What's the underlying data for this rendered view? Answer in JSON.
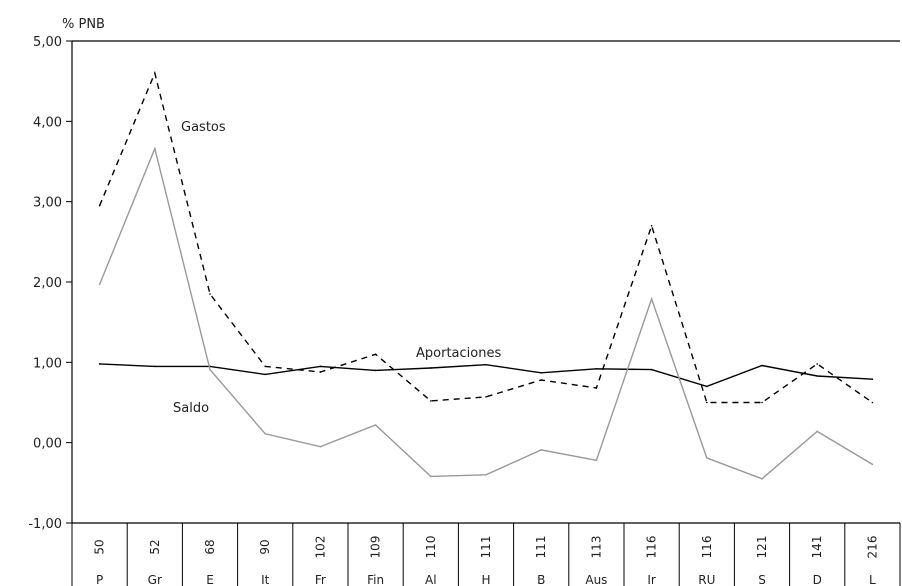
{
  "chart_data": {
    "type": "line",
    "ylabel": "% PNB",
    "ylim": [
      -1,
      5
    ],
    "yticks": [
      "5,00",
      "4,00",
      "3,00",
      "2,00",
      "1,00",
      "0,00",
      "-1,00"
    ],
    "categories": [
      "P",
      "Gr",
      "E",
      "It",
      "Fr",
      "Fin",
      "Al",
      "H",
      "B",
      "Aus",
      "Ir",
      "RU",
      "S",
      "D",
      "L"
    ],
    "category_values": [
      "50",
      "52",
      "68",
      "90",
      "102",
      "109",
      "110",
      "111",
      "111",
      "113",
      "116",
      "116",
      "121",
      "141",
      "216"
    ],
    "series": [
      {
        "name": "Gastos",
        "style": "dashed",
        "color": "#000000",
        "values": [
          2.95,
          4.6,
          1.85,
          0.95,
          0.88,
          1.1,
          0.52,
          0.57,
          0.78,
          0.68,
          2.7,
          0.5,
          0.5,
          0.98,
          0.5
        ]
      },
      {
        "name": "Aportaciones",
        "style": "solid",
        "color": "#000000",
        "values": [
          0.98,
          0.95,
          0.95,
          0.85,
          0.95,
          0.9,
          0.93,
          0.97,
          0.87,
          0.92,
          0.91,
          0.7,
          0.96,
          0.83,
          0.79
        ]
      },
      {
        "name": "Saldo",
        "style": "solid",
        "color": "#999999",
        "values": [
          1.97,
          3.66,
          0.91,
          0.11,
          -0.05,
          0.22,
          -0.42,
          -0.4,
          -0.09,
          -0.22,
          1.79,
          -0.19,
          -0.45,
          0.14,
          -0.27
        ]
      }
    ],
    "grid": false,
    "legend": "inline annotations"
  }
}
